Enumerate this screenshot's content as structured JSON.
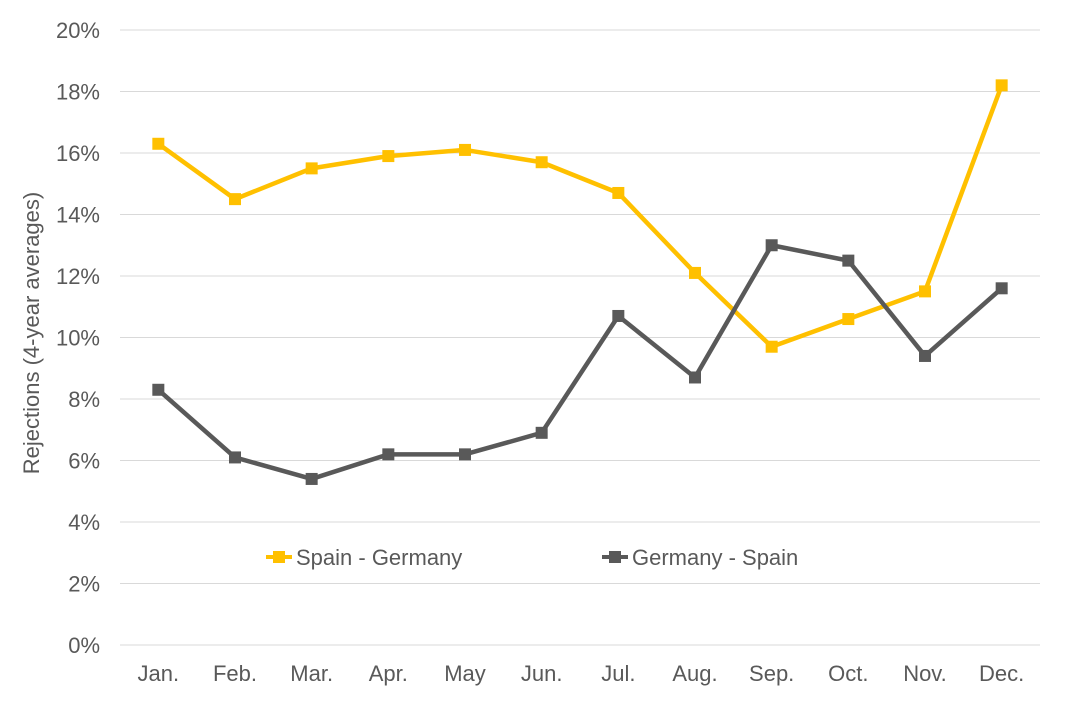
{
  "chart_data": {
    "type": "line",
    "title": "",
    "xlabel": "",
    "ylabel": "Rejections (4-year averages)",
    "categories": [
      "Jan.",
      "Feb.",
      "Mar.",
      "Apr.",
      "May",
      "Jun.",
      "Jul.",
      "Aug.",
      "Sep.",
      "Oct.",
      "Nov.",
      "Dec."
    ],
    "ylim": [
      0,
      20
    ],
    "yticks": [
      0,
      2,
      4,
      6,
      8,
      10,
      12,
      14,
      16,
      18,
      20
    ],
    "ytick_labels": [
      "0%",
      "2%",
      "4%",
      "6%",
      "8%",
      "10%",
      "12%",
      "14%",
      "16%",
      "18%",
      "20%"
    ],
    "grid": true,
    "legend_position": "center",
    "series": [
      {
        "name": "Spain - Germany",
        "color": "#FFC000",
        "values": [
          16.3,
          14.5,
          15.5,
          15.9,
          16.1,
          15.7,
          14.7,
          12.1,
          9.7,
          10.6,
          11.5,
          18.2
        ]
      },
      {
        "name": "Germany - Spain",
        "color": "#595959",
        "values": [
          8.3,
          6.1,
          5.4,
          6.2,
          6.2,
          6.9,
          10.7,
          8.7,
          13.0,
          12.5,
          9.4,
          11.6
        ]
      }
    ]
  }
}
